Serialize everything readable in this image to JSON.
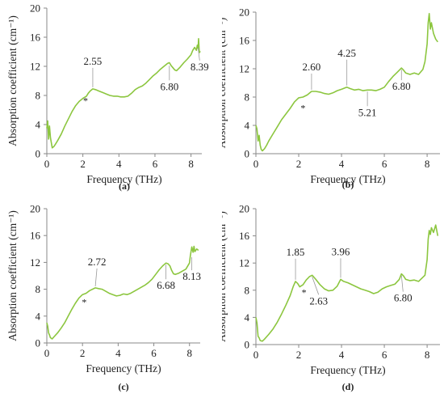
{
  "chart_data": [
    {
      "type": "line",
      "panel_label": "(a)",
      "xlabel": "Frequency (THz)",
      "ylabel": "Absorption coefficient (cm⁻¹)",
      "xlim": [
        0,
        8.6
      ],
      "ylim": [
        0,
        20
      ],
      "xticks": [
        "0",
        "2",
        "4",
        "6",
        "8"
      ],
      "yticks": [
        "0",
        "4",
        "8",
        "12",
        "16",
        "20"
      ],
      "color": "#8cc63f",
      "star_at": [
        2.15,
        7.5
      ],
      "annotations": [
        {
          "label": "2.55",
          "x": 2.55,
          "y": 8.9
        },
        {
          "label": "6.80",
          "x": 6.8,
          "y": 12.3
        },
        {
          "label": "8.39",
          "x": 8.39,
          "y": 14.8
        }
      ],
      "x": [
        0,
        0.05,
        0.1,
        0.15,
        0.2,
        0.25,
        0.3,
        0.4,
        0.5,
        0.6,
        0.8,
        1.0,
        1.2,
        1.4,
        1.6,
        1.8,
        2.0,
        2.2,
        2.3,
        2.4,
        2.55,
        2.7,
        2.9,
        3.1,
        3.3,
        3.5,
        3.7,
        3.9,
        4.1,
        4.3,
        4.5,
        4.7,
        4.9,
        5.1,
        5.3,
        5.5,
        5.7,
        5.9,
        6.1,
        6.3,
        6.5,
        6.7,
        6.8,
        6.9,
        7.0,
        7.1,
        7.2,
        7.4,
        7.6,
        7.8,
        8.0,
        8.1,
        8.2,
        8.3,
        8.35,
        8.39,
        8.42,
        8.45,
        8.48,
        8.5
      ],
      "y": [
        3.5,
        4.5,
        2.0,
        3.8,
        2.2,
        1.5,
        0.8,
        1.0,
        1.4,
        1.8,
        2.7,
        3.8,
        4.8,
        5.8,
        6.6,
        7.2,
        7.6,
        7.9,
        8.3,
        8.6,
        8.9,
        8.8,
        8.6,
        8.4,
        8.2,
        8.0,
        7.9,
        7.9,
        7.8,
        7.8,
        7.9,
        8.3,
        8.8,
        9.1,
        9.3,
        9.7,
        10.2,
        10.7,
        11.1,
        11.6,
        12.0,
        12.4,
        12.5,
        12.1,
        11.8,
        11.5,
        11.4,
        11.9,
        12.5,
        13.0,
        13.6,
        14.2,
        14.6,
        14.2,
        14.9,
        14.5,
        15.8,
        14.2,
        13.9,
        14.1
      ]
    },
    {
      "type": "line",
      "panel_label": "(b)",
      "xlabel": "Frequency (THz)",
      "ylabel": "Absorption coefficient (cm⁻¹)",
      "xlim": [
        0,
        8.6
      ],
      "ylim": [
        0,
        20
      ],
      "xticks": [
        "0",
        "2",
        "4",
        "6",
        "8"
      ],
      "yticks": [
        "0",
        "4",
        "8",
        "12",
        "16",
        "20"
      ],
      "color": "#8cc63f",
      "star_at": [
        2.2,
        6.7
      ],
      "annotations": [
        {
          "label": "2.60",
          "x": 2.6,
          "y": 8.8
        },
        {
          "label": "4.25",
          "x": 4.25,
          "y": 9.4
        },
        {
          "label": "5.21",
          "x": 5.21,
          "y": 9.0
        },
        {
          "label": "6.80",
          "x": 6.8,
          "y": 12.1
        }
      ],
      "x": [
        0,
        0.05,
        0.1,
        0.15,
        0.2,
        0.25,
        0.3,
        0.4,
        0.5,
        0.6,
        0.8,
        1.0,
        1.2,
        1.4,
        1.6,
        1.8,
        2.0,
        2.2,
        2.4,
        2.6,
        2.8,
        3.0,
        3.2,
        3.4,
        3.6,
        3.8,
        4.0,
        4.25,
        4.4,
        4.6,
        4.8,
        5.0,
        5.21,
        5.4,
        5.6,
        5.8,
        6.0,
        6.2,
        6.4,
        6.6,
        6.8,
        6.9,
        7.0,
        7.2,
        7.4,
        7.6,
        7.8,
        7.9,
        8.0,
        8.05,
        8.1,
        8.15,
        8.2,
        8.3,
        8.4,
        8.5
      ],
      "y": [
        4.0,
        3.5,
        1.8,
        2.6,
        1.2,
        0.6,
        0.4,
        0.7,
        1.2,
        1.8,
        2.8,
        3.8,
        4.8,
        5.6,
        6.4,
        7.3,
        7.9,
        8.0,
        8.3,
        8.8,
        8.8,
        8.7,
        8.5,
        8.4,
        8.6,
        8.9,
        9.1,
        9.4,
        9.2,
        9.0,
        9.1,
        8.9,
        9.0,
        9.0,
        8.9,
        9.1,
        9.4,
        10.2,
        10.9,
        11.5,
        12.1,
        11.8,
        11.4,
        11.2,
        11.4,
        11.2,
        11.9,
        13.0,
        15.5,
        18.5,
        19.8,
        17.6,
        18.5,
        17.0,
        16.2,
        15.8
      ]
    },
    {
      "type": "line",
      "panel_label": "(c)",
      "xlabel": "Frequency (THz)",
      "ylabel": "Absorption coefficient (cm⁻¹)",
      "xlim": [
        0,
        8.6
      ],
      "ylim": [
        0,
        20
      ],
      "xticks": [
        "0",
        "2",
        "4",
        "6",
        "8"
      ],
      "yticks": [
        "0",
        "4",
        "8",
        "12",
        "16",
        "20"
      ],
      "color": "#8cc63f",
      "star_at": [
        2.1,
        6.3
      ],
      "annotations": [
        {
          "label": "2.72",
          "x": 2.72,
          "y": 8.2
        },
        {
          "label": "6.68",
          "x": 6.68,
          "y": 11.9
        },
        {
          "label": "8.13",
          "x": 8.13,
          "y": 13.0
        }
      ],
      "x": [
        0,
        0.05,
        0.1,
        0.15,
        0.2,
        0.3,
        0.4,
        0.6,
        0.8,
        1.0,
        1.2,
        1.4,
        1.6,
        1.8,
        2.0,
        2.2,
        2.4,
        2.72,
        2.9,
        3.1,
        3.3,
        3.5,
        3.7,
        3.9,
        4.1,
        4.3,
        4.5,
        4.7,
        4.9,
        5.1,
        5.3,
        5.5,
        5.7,
        5.9,
        6.1,
        6.3,
        6.5,
        6.68,
        6.8,
        6.9,
        7.0,
        7.1,
        7.2,
        7.4,
        7.6,
        7.8,
        8.0,
        8.05,
        8.13,
        8.2,
        8.25,
        8.3,
        8.4,
        8.5
      ],
      "y": [
        3.0,
        2.5,
        1.5,
        1.2,
        0.8,
        0.6,
        0.9,
        1.5,
        2.2,
        3.0,
        4.0,
        5.0,
        5.9,
        6.7,
        7.2,
        7.4,
        7.8,
        8.2,
        8.1,
        8.0,
        7.7,
        7.4,
        7.2,
        7.0,
        7.1,
        7.3,
        7.2,
        7.4,
        7.7,
        8.0,
        8.3,
        8.6,
        9.0,
        9.5,
        10.2,
        10.9,
        11.5,
        11.9,
        11.8,
        11.5,
        10.8,
        10.3,
        10.2,
        10.4,
        10.7,
        11.0,
        11.9,
        13.0,
        14.3,
        13.5,
        14.4,
        13.6,
        14.0,
        13.8
      ]
    },
    {
      "type": "line",
      "panel_label": "(d)",
      "xlabel": "Frequency (THz)",
      "ylabel": "Absorption coefficient (cm⁻¹)",
      "xlim": [
        0,
        8.6
      ],
      "ylim": [
        0,
        20
      ],
      "xticks": [
        "0",
        "2",
        "4",
        "6",
        "8"
      ],
      "yticks": [
        "0",
        "4",
        "8",
        "12",
        "16",
        "20"
      ],
      "color": "#8cc63f",
      "star_at": [
        2.25,
        7.9
      ],
      "annotations": [
        {
          "label": "1.85",
          "x": 1.85,
          "y": 9.3
        },
        {
          "label": "2.63",
          "x": 2.63,
          "y": 10.2
        },
        {
          "label": "3.96",
          "x": 3.96,
          "y": 9.6
        },
        {
          "label": "6.80",
          "x": 6.8,
          "y": 10.4
        }
      ],
      "x": [
        0,
        0.05,
        0.1,
        0.15,
        0.2,
        0.3,
        0.4,
        0.6,
        0.8,
        1.0,
        1.2,
        1.4,
        1.6,
        1.75,
        1.85,
        1.95,
        2.05,
        2.2,
        2.35,
        2.5,
        2.63,
        2.8,
        3.0,
        3.2,
        3.4,
        3.6,
        3.8,
        3.96,
        4.1,
        4.3,
        4.5,
        4.7,
        4.9,
        5.1,
        5.3,
        5.5,
        5.7,
        5.9,
        6.1,
        6.3,
        6.5,
        6.7,
        6.8,
        6.9,
        7.0,
        7.2,
        7.4,
        7.6,
        7.8,
        7.9,
        8.0,
        8.05,
        8.1,
        8.15,
        8.2,
        8.3,
        8.4,
        8.5
      ],
      "y": [
        4.0,
        3.2,
        1.2,
        1.0,
        0.6,
        0.5,
        0.8,
        1.5,
        2.3,
        3.3,
        4.5,
        5.8,
        7.2,
        8.6,
        9.3,
        9.0,
        8.5,
        8.8,
        9.5,
        10.0,
        10.2,
        9.6,
        8.8,
        8.2,
        7.9,
        8.0,
        8.6,
        9.6,
        9.3,
        9.1,
        8.8,
        8.5,
        8.2,
        8.0,
        7.8,
        7.5,
        7.7,
        8.2,
        8.5,
        8.7,
        8.9,
        9.6,
        10.4,
        10.1,
        9.6,
        9.4,
        9.5,
        9.3,
        9.9,
        10.2,
        12.5,
        15.5,
        16.8,
        16.2,
        17.2,
        16.5,
        17.6,
        16.0
      ]
    }
  ]
}
